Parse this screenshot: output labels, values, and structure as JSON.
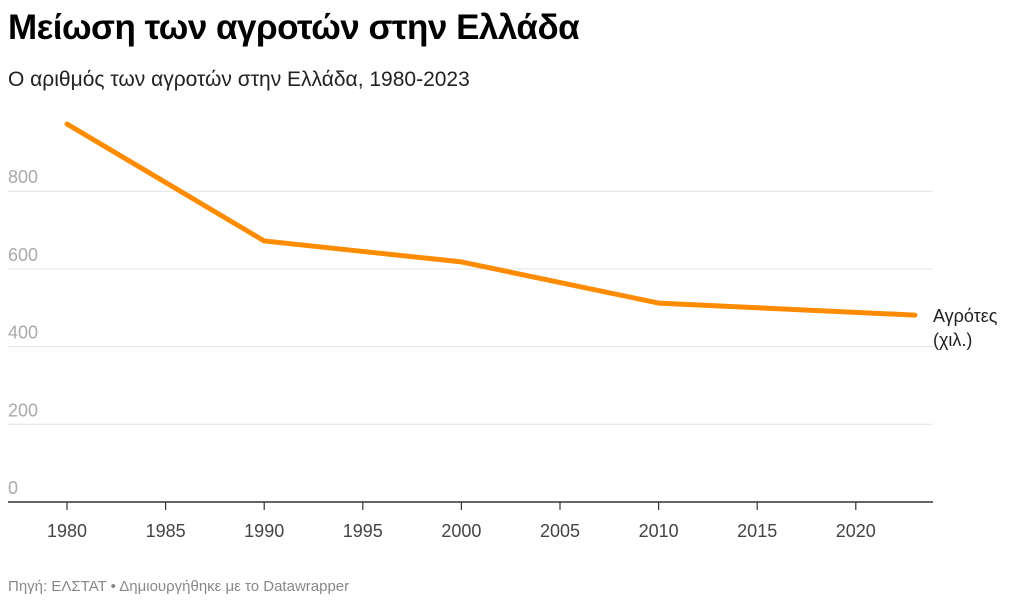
{
  "title": "Μείωση των αγροτών στην Ελλάδα",
  "subtitle": "Ο αριθμός των αγροτών στην Ελλάδα, 1980-2023",
  "footer": "Πηγή: ΕΛΣΤΑΤ • Δημιουργήθηκε με το Datawrapper",
  "chart_data": {
    "type": "line",
    "title": "Μείωση των αγροτών στην Ελλάδα",
    "subtitle": "Ο αριθμός των αγροτών στην Ελλάδα, 1980-2023",
    "xlabel": "",
    "ylabel": "",
    "xlim": [
      1980,
      2023
    ],
    "ylim": [
      0,
      1000
    ],
    "yticks": [
      "0",
      "200",
      "400",
      "600",
      "800"
    ],
    "xticks": [
      "1980",
      "1985",
      "1990",
      "1995",
      "2000",
      "2005",
      "2010",
      "2015",
      "2020"
    ],
    "grid": true,
    "color": "#ff8c00",
    "series": [
      {
        "name": "Αγρότες (χιλ.)",
        "name_lines": [
          "Αγρότες",
          "(χιλ.)"
        ],
        "x": [
          1980,
          1990,
          2000,
          2010,
          2023
        ],
        "values": [
          973,
          672,
          618,
          512,
          481
        ]
      }
    ]
  }
}
